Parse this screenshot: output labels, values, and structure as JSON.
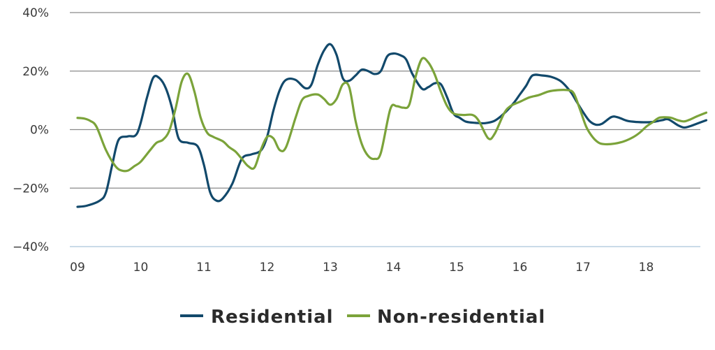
{
  "chart_data": {
    "type": "line",
    "title": "",
    "xlabel": "",
    "ylabel": "",
    "y_unit": "%",
    "ylim": [
      -40,
      40
    ],
    "xlim": [
      2009,
      2019
    ],
    "yticks": [
      40,
      20,
      0,
      -20,
      -40
    ],
    "ytick_labels": [
      "40%",
      "20%",
      "0%",
      "−20%",
      "−40%"
    ],
    "xticks": [
      2009,
      2010,
      2011,
      2012,
      2013,
      2014,
      2015,
      2016,
      2017,
      2018
    ],
    "xtick_labels": [
      "09",
      "10",
      "11",
      "12",
      "13",
      "14",
      "15",
      "16",
      "17",
      "18"
    ],
    "grid": true,
    "legend_position": "bottom-center",
    "series": [
      {
        "name": "Residential",
        "color": "#12496b",
        "points": [
          [
            2009.0,
            -26.4
          ],
          [
            2009.15,
            -26.0
          ],
          [
            2009.35,
            -24.3
          ],
          [
            2009.45,
            -21.5
          ],
          [
            2009.55,
            -12.0
          ],
          [
            2009.65,
            -3.5
          ],
          [
            2009.8,
            -2.3
          ],
          [
            2009.95,
            -1.0
          ],
          [
            2010.1,
            11.0
          ],
          [
            2010.2,
            17.8
          ],
          [
            2010.3,
            17.5
          ],
          [
            2010.4,
            14.0
          ],
          [
            2010.5,
            7.0
          ],
          [
            2010.6,
            -3.0
          ],
          [
            2010.75,
            -4.5
          ],
          [
            2010.9,
            -5.7
          ],
          [
            2011.0,
            -12.0
          ],
          [
            2011.1,
            -21.5
          ],
          [
            2011.2,
            -24.3
          ],
          [
            2011.3,
            -23.5
          ],
          [
            2011.45,
            -18.5
          ],
          [
            2011.6,
            -10.0
          ],
          [
            2011.75,
            -8.5
          ],
          [
            2011.9,
            -7.2
          ],
          [
            2012.0,
            -2.5
          ],
          [
            2012.1,
            6.5
          ],
          [
            2012.2,
            13.5
          ],
          [
            2012.3,
            17.0
          ],
          [
            2012.45,
            17.0
          ],
          [
            2012.6,
            14.2
          ],
          [
            2012.7,
            15.3
          ],
          [
            2012.8,
            22.0
          ],
          [
            2012.9,
            27.0
          ],
          [
            2013.0,
            29.2
          ],
          [
            2013.1,
            25.5
          ],
          [
            2013.2,
            17.5
          ],
          [
            2013.3,
            16.7
          ],
          [
            2013.4,
            18.5
          ],
          [
            2013.5,
            20.5
          ],
          [
            2013.6,
            20.0
          ],
          [
            2013.7,
            19.0
          ],
          [
            2013.8,
            20.0
          ],
          [
            2013.9,
            25.0
          ],
          [
            2014.0,
            26.0
          ],
          [
            2014.1,
            25.5
          ],
          [
            2014.2,
            24.0
          ],
          [
            2014.3,
            19.0
          ],
          [
            2014.45,
            14.0
          ],
          [
            2014.55,
            14.5
          ],
          [
            2014.65,
            15.8
          ],
          [
            2014.75,
            15.5
          ],
          [
            2014.85,
            11.0
          ],
          [
            2014.95,
            5.5
          ],
          [
            2015.05,
            4.0
          ],
          [
            2015.15,
            2.7
          ],
          [
            2015.3,
            2.3
          ],
          [
            2015.45,
            2.2
          ],
          [
            2015.6,
            3.0
          ],
          [
            2015.75,
            5.5
          ],
          [
            2015.9,
            9.0
          ],
          [
            2016.0,
            12.0
          ],
          [
            2016.1,
            15.0
          ],
          [
            2016.2,
            18.5
          ],
          [
            2016.35,
            18.5
          ],
          [
            2016.5,
            18.0
          ],
          [
            2016.65,
            16.5
          ],
          [
            2016.8,
            13.0
          ],
          [
            2016.9,
            9.5
          ],
          [
            2017.0,
            6.0
          ],
          [
            2017.1,
            3.0
          ],
          [
            2017.2,
            1.7
          ],
          [
            2017.3,
            2.0
          ],
          [
            2017.45,
            4.3
          ],
          [
            2017.55,
            4.2
          ],
          [
            2017.7,
            3.0
          ],
          [
            2017.85,
            2.6
          ],
          [
            2018.0,
            2.5
          ],
          [
            2018.1,
            2.6
          ],
          [
            2018.25,
            3.2
          ],
          [
            2018.35,
            3.5
          ],
          [
            2018.5,
            1.5
          ],
          [
            2018.6,
            0.7
          ],
          [
            2018.7,
            1.2
          ],
          [
            2018.8,
            2.0
          ],
          [
            2018.95,
            3.2
          ]
        ]
      },
      {
        "name": "Non-residential",
        "color": "#7ba33a",
        "points": [
          [
            2009.0,
            4.0
          ],
          [
            2009.1,
            3.8
          ],
          [
            2009.2,
            3.0
          ],
          [
            2009.3,
            1.0
          ],
          [
            2009.45,
            -7.0
          ],
          [
            2009.6,
            -12.5
          ],
          [
            2009.7,
            -14.0
          ],
          [
            2009.8,
            -14.0
          ],
          [
            2009.9,
            -12.5
          ],
          [
            2010.0,
            -11.0
          ],
          [
            2010.15,
            -7.0
          ],
          [
            2010.25,
            -4.5
          ],
          [
            2010.35,
            -3.5
          ],
          [
            2010.45,
            -0.5
          ],
          [
            2010.55,
            7.0
          ],
          [
            2010.65,
            16.5
          ],
          [
            2010.75,
            19.0
          ],
          [
            2010.85,
            13.0
          ],
          [
            2010.95,
            4.0
          ],
          [
            2011.05,
            -1.0
          ],
          [
            2011.15,
            -2.5
          ],
          [
            2011.3,
            -4.0
          ],
          [
            2011.4,
            -6.0
          ],
          [
            2011.5,
            -7.5
          ],
          [
            2011.6,
            -10.0
          ],
          [
            2011.7,
            -12.5
          ],
          [
            2011.8,
            -13.0
          ],
          [
            2011.9,
            -7.0
          ],
          [
            2012.0,
            -2.5
          ],
          [
            2012.1,
            -3.0
          ],
          [
            2012.2,
            -7.0
          ],
          [
            2012.3,
            -6.0
          ],
          [
            2012.45,
            4.0
          ],
          [
            2012.55,
            10.0
          ],
          [
            2012.65,
            11.5
          ],
          [
            2012.8,
            12.0
          ],
          [
            2012.9,
            10.5
          ],
          [
            2013.0,
            8.5
          ],
          [
            2013.1,
            10.5
          ],
          [
            2013.2,
            15.5
          ],
          [
            2013.3,
            14.5
          ],
          [
            2013.4,
            3.0
          ],
          [
            2013.5,
            -5.0
          ],
          [
            2013.6,
            -9.0
          ],
          [
            2013.7,
            -10.0
          ],
          [
            2013.8,
            -8.0
          ],
          [
            2013.95,
            7.0
          ],
          [
            2014.05,
            8.0
          ],
          [
            2014.15,
            7.5
          ],
          [
            2014.25,
            8.5
          ],
          [
            2014.35,
            18.0
          ],
          [
            2014.45,
            24.2
          ],
          [
            2014.55,
            23.0
          ],
          [
            2014.65,
            19.0
          ],
          [
            2014.75,
            13.0
          ],
          [
            2014.85,
            8.0
          ],
          [
            2014.95,
            5.5
          ],
          [
            2015.1,
            5.0
          ],
          [
            2015.25,
            5.0
          ],
          [
            2015.35,
            3.0
          ],
          [
            2015.5,
            -3.0
          ],
          [
            2015.6,
            -1.5
          ],
          [
            2015.75,
            5.5
          ],
          [
            2015.85,
            8.0
          ],
          [
            2016.0,
            9.5
          ],
          [
            2016.15,
            11.0
          ],
          [
            2016.3,
            11.8
          ],
          [
            2016.45,
            13.0
          ],
          [
            2016.6,
            13.5
          ],
          [
            2016.75,
            13.5
          ],
          [
            2016.85,
            12.5
          ],
          [
            2016.95,
            7.0
          ],
          [
            2017.05,
            1.0
          ],
          [
            2017.15,
            -2.5
          ],
          [
            2017.25,
            -4.5
          ],
          [
            2017.35,
            -5.0
          ],
          [
            2017.5,
            -4.8
          ],
          [
            2017.65,
            -4.0
          ],
          [
            2017.8,
            -2.5
          ],
          [
            2017.9,
            -1.0
          ],
          [
            2018.0,
            1.0
          ],
          [
            2018.1,
            2.5
          ],
          [
            2018.2,
            4.0
          ],
          [
            2018.3,
            4.2
          ],
          [
            2018.4,
            4.0
          ],
          [
            2018.5,
            3.2
          ],
          [
            2018.6,
            2.8
          ],
          [
            2018.7,
            3.5
          ],
          [
            2018.8,
            4.5
          ],
          [
            2018.95,
            5.8
          ]
        ]
      }
    ]
  },
  "colors": {
    "grid": "#8a8a8a",
    "baseline": "#b9cfe0"
  }
}
